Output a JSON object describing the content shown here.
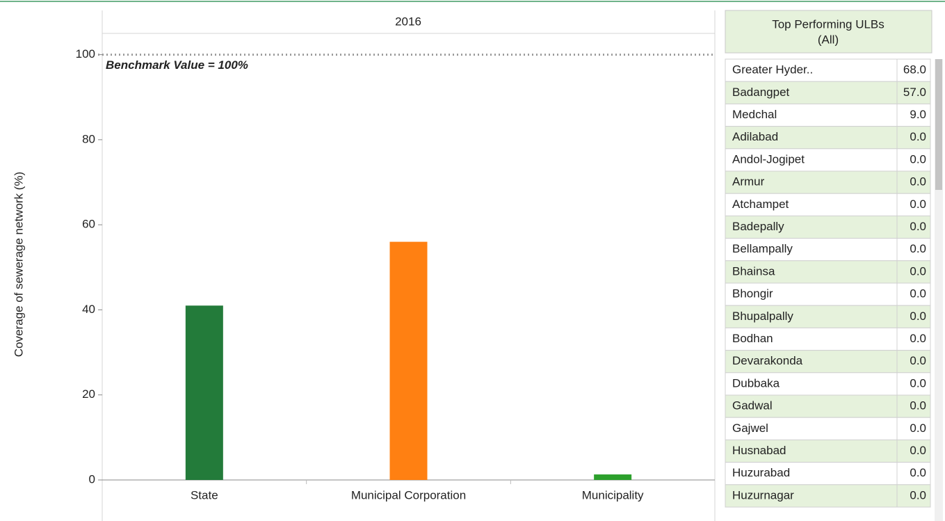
{
  "chart_data": {
    "type": "bar",
    "column_header": "2016",
    "y_label": "Coverage of sewerage network (%)",
    "categories": [
      "State",
      "Municipal Corporation",
      "Municipality"
    ],
    "values": [
      41,
      56,
      1.3
    ],
    "colors": [
      "#237b3a",
      "#ff8012",
      "#2ca02c"
    ],
    "ylim": [
      0,
      105
    ],
    "yticks": [
      0,
      20,
      40,
      60,
      80,
      100
    ],
    "benchmark": {
      "value": 100,
      "label": "Benchmark Value = 100%"
    }
  },
  "table": {
    "title": "Top Performing ULBs",
    "subtitle": "(All)",
    "rows": [
      [
        "Greater Hyder..",
        "68.0"
      ],
      [
        "Badangpet",
        "57.0"
      ],
      [
        "Medchal",
        "9.0"
      ],
      [
        "Adilabad",
        "0.0"
      ],
      [
        "Andol-Jogipet",
        "0.0"
      ],
      [
        "Armur",
        "0.0"
      ],
      [
        "Atchampet",
        "0.0"
      ],
      [
        "Badepally",
        "0.0"
      ],
      [
        "Bellampally",
        "0.0"
      ],
      [
        "Bhainsa",
        "0.0"
      ],
      [
        "Bhongir",
        "0.0"
      ],
      [
        "Bhupalpally",
        "0.0"
      ],
      [
        "Bodhan",
        "0.0"
      ],
      [
        "Devarakonda",
        "0.0"
      ],
      [
        "Dubbaka",
        "0.0"
      ],
      [
        "Gadwal",
        "0.0"
      ],
      [
        "Gajwel",
        "0.0"
      ],
      [
        "Husnabad",
        "0.0"
      ],
      [
        "Huzurabad",
        "0.0"
      ],
      [
        "Huzurnagar",
        "0.0"
      ]
    ]
  }
}
